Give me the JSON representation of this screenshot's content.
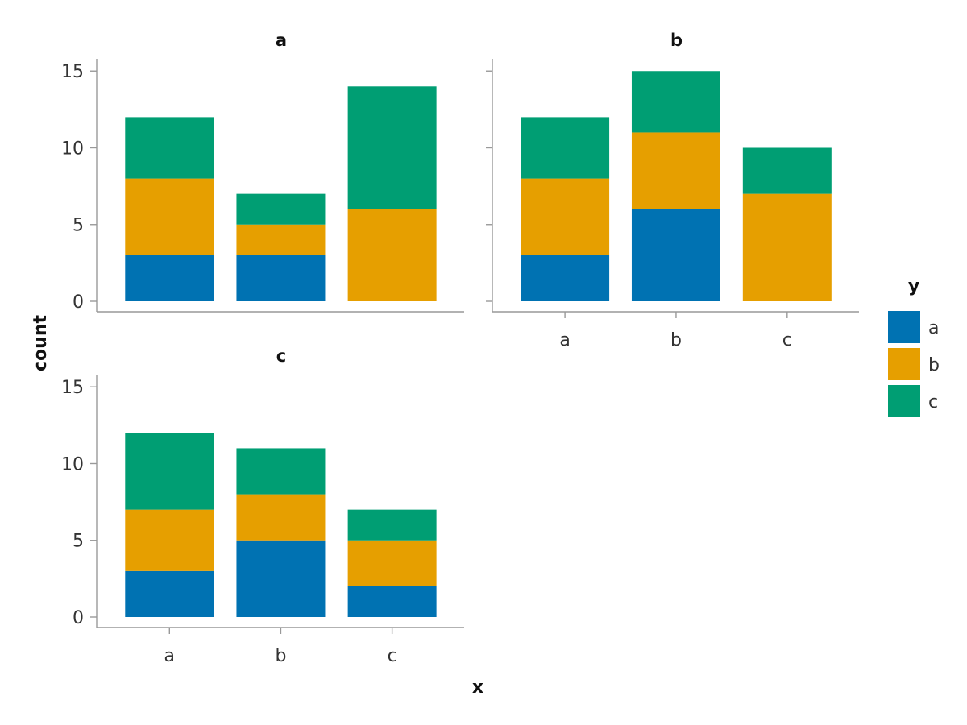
{
  "chart_data": {
    "type": "bar",
    "stacked": true,
    "xlabel": "x",
    "ylabel": "count",
    "ylim": [
      0,
      15.8
    ],
    "yticks": [
      0,
      5,
      10,
      15
    ],
    "categories": [
      "a",
      "b",
      "c"
    ],
    "legend": {
      "title": "y",
      "placement": "right",
      "entries": [
        {
          "label": "a",
          "color": "#0072b2"
        },
        {
          "label": "b",
          "color": "#e69f00"
        },
        {
          "label": "c",
          "color": "#009e73"
        }
      ]
    },
    "facets": [
      {
        "title": "a",
        "series": [
          {
            "name": "a",
            "values": [
              3,
              3,
              0
            ]
          },
          {
            "name": "b",
            "values": [
              5,
              2,
              6
            ]
          },
          {
            "name": "c",
            "values": [
              4,
              2,
              8
            ]
          }
        ]
      },
      {
        "title": "b",
        "series": [
          {
            "name": "a",
            "values": [
              3,
              6,
              0
            ]
          },
          {
            "name": "b",
            "values": [
              5,
              5,
              7
            ]
          },
          {
            "name": "c",
            "values": [
              4,
              4,
              3
            ]
          }
        ]
      },
      {
        "title": "c",
        "series": [
          {
            "name": "a",
            "values": [
              3,
              5,
              2
            ]
          },
          {
            "name": "b",
            "values": [
              4,
              3,
              3
            ]
          },
          {
            "name": "c",
            "values": [
              5,
              3,
              2
            ]
          }
        ]
      }
    ]
  }
}
